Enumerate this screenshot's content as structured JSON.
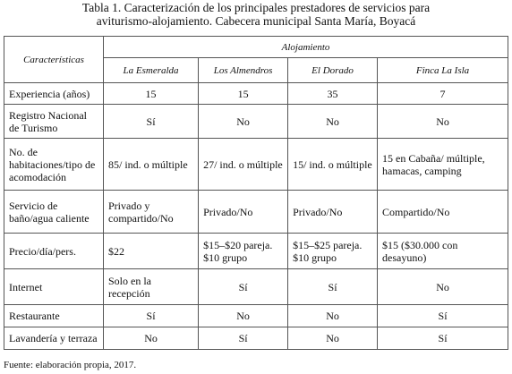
{
  "title": [
    "Tabla 1. Caracterización de los principales prestadores de servicios para",
    "aviturismo-alojamiento. Cabecera municipal Santa María, Boyacá"
  ],
  "table": {
    "header": {
      "corner": "Características",
      "group": "Alojamiento",
      "columns": [
        "La Esmeralda",
        "Los Almendros",
        "El Dorado",
        "Finca La Isla"
      ]
    },
    "rows": [
      {
        "label": "Experiencia (años)",
        "cells": [
          "15",
          "15",
          "35",
          "7"
        ]
      },
      {
        "label": "Registro Nacional de Turismo",
        "cells": [
          "Sí",
          "No",
          "No",
          "No"
        ]
      },
      {
        "label": "No. de habitaciones/tipo de acomodación",
        "cells": [
          "85/ ind. o múltiple",
          "27/ ind. o múltiple",
          "15/ ind. o múltiple",
          "15 en Cabaña/ múltiple, hamacas, camping"
        ]
      },
      {
        "label": "Servicio de baño/agua caliente",
        "cells": [
          "Privado y compartido/No",
          "Privado/No",
          "Privado/No",
          "Compartido/No"
        ]
      },
      {
        "label": "Precio/día/pers.",
        "cells": [
          "$22",
          "$15–$20 pareja. $10 grupo",
          "$15–$25 pareja. $10 grupo",
          "$15 ($30.000 con desayuno)"
        ]
      },
      {
        "label": "Internet",
        "cells": [
          "Solo en la recepción",
          "Sí",
          "Sí",
          "No"
        ]
      },
      {
        "label": "Restaurante",
        "cells": [
          "Sí",
          "No",
          "No",
          "Sí"
        ]
      },
      {
        "label": "Lavandería y terraza",
        "cells": [
          "No",
          "Sí",
          "No",
          "Sí"
        ]
      }
    ]
  },
  "footer": "Fuente: elaboración propia, 2017."
}
